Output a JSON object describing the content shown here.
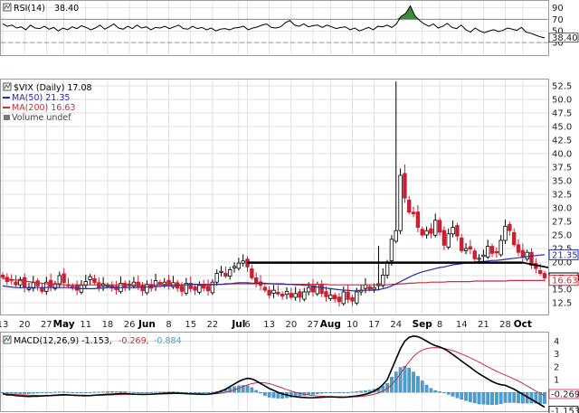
{
  "chart_data": [
    {
      "type": "line",
      "indicator_label": "RSI(14)",
      "indicator_value": "38.40",
      "yticks": [
        "90",
        "70",
        "50",
        "30"
      ],
      "ylim": [
        10,
        100
      ],
      "reference_lines": [
        70,
        30
      ],
      "current_marker": "38.40",
      "series": [
        {
          "values": [
            62,
            58,
            60,
            55,
            57,
            52,
            60,
            55,
            54,
            58,
            53,
            56,
            50,
            55,
            52,
            57,
            54,
            59,
            56,
            52,
            55,
            60,
            53,
            57,
            62,
            55,
            53,
            58,
            54,
            60,
            55,
            57,
            52,
            56,
            55,
            58,
            54,
            57,
            60,
            54,
            53,
            58,
            54,
            56,
            52,
            55,
            50,
            53,
            54,
            52,
            55,
            56,
            58,
            52,
            55,
            57,
            60,
            62,
            56,
            55,
            57,
            64,
            68,
            60,
            58,
            62,
            57,
            59,
            60,
            56,
            60,
            57,
            54,
            56,
            57,
            52,
            55,
            50,
            53,
            56,
            52,
            58,
            57,
            60,
            56,
            62,
            75,
            80,
            93,
            76,
            68,
            62,
            58,
            62,
            55,
            58,
            63,
            56,
            54,
            60,
            52,
            48,
            55,
            50,
            47,
            50,
            52,
            49,
            51,
            55,
            53,
            51,
            56,
            48,
            46,
            43,
            40,
            38
          ]
        }
      ]
    },
    {
      "type": "candlestick",
      "title": "$VIX (Daily) 17.08",
      "legend": [
        {
          "name": "MA(50) 21.35",
          "color": "#2b2b9e"
        },
        {
          "name": "MA(200) 16.63",
          "color": "#cc2b3b"
        },
        {
          "name": "Volume undef",
          "color": "#777777"
        }
      ],
      "yticks": [
        "52.5",
        "50.0",
        "47.5",
        "45.0",
        "42.5",
        "40.0",
        "37.5",
        "35.0",
        "32.5",
        "30.0",
        "27.5",
        "25.0",
        "22.5",
        "20.0",
        "17.5",
        "15.0",
        "12.5"
      ],
      "ylim": [
        10.5,
        53.5
      ],
      "markers": [
        {
          "label": "21.35",
          "color": "#2b2b9e"
        },
        {
          "label": "17.08",
          "color": "#000000"
        },
        {
          "label": "16.63",
          "color": "#cc2b3b"
        }
      ],
      "close": [
        17.2,
        16.4,
        16.7,
        15.8,
        16.8,
        15.3,
        15.2,
        16.2,
        15.6,
        14.6,
        16.3,
        15.5,
        16.0,
        17.5,
        16.2,
        15.6,
        15.5,
        14.8,
        15.7,
        16.4,
        17.3,
        16.2,
        15.2,
        16.0,
        15.7,
        15.2,
        14.9,
        16.1,
        15.3,
        15.9,
        16.3,
        15.5,
        14.7,
        15.9,
        15.2,
        16.6,
        15.9,
        16.3,
        15.8,
        16.2,
        15.2,
        14.6,
        16.1,
        15.1,
        14.8,
        15.7,
        15.2,
        14.7,
        16.3,
        17.9,
        18.3,
        17.4,
        18.6,
        19.2,
        19.8,
        20.2,
        19.1,
        17.1,
        16.0,
        15.7,
        14.8,
        13.9,
        14.8,
        14.1,
        13.7,
        14.6,
        13.5,
        14.2,
        13.5,
        14.5,
        15.3,
        14.5,
        15.9,
        14.2,
        13.6,
        13.9,
        13.2,
        12.7,
        14.5,
        13.1,
        12.8,
        14.5,
        14.8,
        15.8,
        15.0,
        15.3,
        16.0,
        17.6,
        19.9,
        24.2,
        25.8,
        36.0,
        31.8,
        29.2,
        28.9,
        26.4,
        25.0,
        25.8,
        25.3,
        27.7,
        25.5,
        23.1,
        25.2,
        26.4,
        24.8,
        22.1,
        22.5,
        22.4,
        20.6,
        20.7,
        21.3,
        22.9,
        21.6,
        21.7,
        24.0,
        26.6,
        25.8,
        23.2,
        21.8,
        20.9,
        21.8,
        19.4,
        18.8,
        17.9,
        17.08
      ],
      "ma50": [
        15.6,
        15.5,
        15.4,
        15.3,
        15.3,
        15.3,
        15.3,
        15.3,
        15.3,
        15.3,
        15.3,
        15.3,
        15.3,
        15.3,
        15.3,
        15.3,
        15.2,
        15.2,
        15.1,
        15.1,
        15.1,
        15.1,
        15.2,
        15.2,
        15.3,
        15.3,
        15.3,
        15.3,
        15.3,
        15.3,
        15.3,
        15.3,
        15.4,
        15.4,
        15.5,
        15.5,
        15.5,
        15.6,
        15.6,
        15.7,
        15.7,
        15.8,
        15.8,
        15.9,
        15.9,
        15.8,
        15.8,
        15.8,
        15.8,
        15.9,
        15.9,
        16.0,
        16.0,
        16.1,
        16.2,
        16.2,
        16.2,
        16.1,
        16.1,
        16.1,
        16.1,
        16.0,
        16.0,
        16.0,
        16.0,
        15.9,
        15.9,
        15.8,
        15.8,
        15.7,
        15.7,
        15.5,
        15.4,
        15.3,
        15.2,
        15.1,
        15.0,
        14.9,
        14.8,
        14.8,
        14.7,
        14.7,
        14.8,
        14.8,
        14.8,
        14.8,
        14.9,
        15.1,
        15.3,
        15.6,
        16.0,
        16.4,
        16.8,
        17.2,
        17.6,
        17.9,
        18.2,
        18.4,
        18.6,
        18.8,
        19.0,
        19.1,
        19.3,
        19.5,
        19.6,
        19.7,
        19.8,
        19.9,
        20.0,
        20.1,
        20.1,
        20.2,
        20.3,
        20.3,
        20.4,
        20.5,
        20.6,
        20.7,
        20.8,
        20.9,
        21.0,
        21.1,
        21.2,
        21.3,
        21.35
      ],
      "ma200": [
        17.0,
        16.9,
        16.8,
        16.7,
        16.6,
        16.5,
        16.4,
        16.3,
        16.2,
        16.1,
        16.0,
        15.9,
        15.9,
        15.8,
        15.8,
        15.8,
        15.8,
        15.8,
        15.8,
        15.8,
        15.8,
        15.8,
        15.8,
        15.8,
        15.8,
        15.8,
        15.8,
        15.8,
        15.8,
        15.8,
        15.8,
        15.8,
        15.8,
        15.8,
        15.8,
        15.8,
        15.8,
        15.8,
        15.8,
        15.8,
        15.8,
        15.8,
        15.8,
        15.8,
        15.9,
        15.9,
        15.9,
        15.9,
        15.9,
        15.9,
        15.9,
        15.9,
        16.0,
        16.0,
        16.0,
        16.0,
        16.0,
        16.0,
        16.0,
        16.0,
        16.0,
        16.0,
        16.0,
        15.9,
        15.9,
        15.9,
        15.9,
        15.9,
        15.9,
        15.9,
        15.9,
        15.9,
        15.9,
        15.9,
        15.9,
        15.8,
        15.8,
        15.8,
        15.8,
        15.8,
        15.8,
        15.8,
        15.8,
        15.8,
        15.8,
        15.8,
        15.8,
        15.8,
        15.8,
        15.9,
        15.9,
        16.0,
        16.0,
        16.1,
        16.1,
        16.2,
        16.2,
        16.2,
        16.3,
        16.3,
        16.3,
        16.3,
        16.4,
        16.4,
        16.4,
        16.4,
        16.4,
        16.4,
        16.5,
        16.5,
        16.5,
        16.5,
        16.5,
        16.5,
        16.5,
        16.5,
        16.6,
        16.6,
        16.6,
        16.6,
        16.6,
        16.6,
        16.6,
        16.6,
        16.63
      ],
      "resistance_line": {
        "y": 19.9,
        "start_index": 56,
        "end_index": 119
      },
      "extreme_highs": [
        {
          "index": 90,
          "value": 53.3
        },
        {
          "index": 92,
          "value": 38.0
        },
        {
          "index": 86,
          "value": 23.0
        }
      ]
    },
    {
      "type": "line",
      "indicator_label": "MACD(12,26,9) -1.153,",
      "signal_text": "-0.269,",
      "histogram_text": "-0.884",
      "yticks": [
        "4",
        "3",
        "2",
        "1",
        "0"
      ],
      "ylim": [
        -1.4,
        4.6
      ],
      "markers": [
        {
          "label": "-0.269",
          "color": "#cc2b3b"
        },
        {
          "label": "-1.153",
          "color": "#000000"
        }
      ],
      "series": [
        {
          "name": "MACD",
          "color": "#000000",
          "values": [
            -0.1,
            -0.2,
            -0.2,
            -0.25,
            -0.28,
            -0.3,
            -0.32,
            -0.3,
            -0.3,
            -0.28,
            -0.26,
            -0.25,
            -0.22,
            -0.2,
            -0.18,
            -0.2,
            -0.22,
            -0.24,
            -0.25,
            -0.26,
            -0.25,
            -0.22,
            -0.2,
            -0.18,
            -0.15,
            -0.14,
            -0.12,
            -0.1,
            -0.1,
            -0.12,
            -0.14,
            -0.15,
            -0.16,
            -0.15,
            -0.14,
            -0.12,
            -0.1,
            -0.08,
            -0.06,
            -0.05,
            -0.06,
            -0.08,
            -0.1,
            -0.12,
            -0.13,
            -0.14,
            -0.15,
            -0.14,
            -0.1,
            -0.02,
            0.1,
            0.25,
            0.45,
            0.65,
            0.85,
            1.0,
            1.1,
            1.05,
            0.9,
            0.7,
            0.5,
            0.3,
            0.15,
            0.0,
            -0.12,
            -0.2,
            -0.28,
            -0.34,
            -0.38,
            -0.4,
            -0.42,
            -0.42,
            -0.4,
            -0.38,
            -0.36,
            -0.35,
            -0.36,
            -0.38,
            -0.38,
            -0.36,
            -0.32,
            -0.28,
            -0.22,
            -0.15,
            -0.05,
            0.1,
            0.3,
            0.6,
            1.0,
            1.8,
            2.6,
            3.4,
            4.0,
            4.3,
            4.4,
            4.35,
            4.2,
            4.0,
            3.8,
            3.65,
            3.55,
            3.4,
            3.2,
            2.95,
            2.7,
            2.45,
            2.2,
            1.95,
            1.7,
            1.45,
            1.25,
            1.05,
            0.85,
            0.7,
            0.6,
            0.55,
            0.4,
            0.25,
            0.05,
            -0.15,
            -0.35,
            -0.55,
            -0.75,
            -0.95,
            -1.153
          ]
        },
        {
          "name": "Signal",
          "color": "#cc2b3b",
          "values": [
            -0.1,
            -0.12,
            -0.14,
            -0.16,
            -0.18,
            -0.2,
            -0.22,
            -0.23,
            -0.24,
            -0.25,
            -0.25,
            -0.25,
            -0.25,
            -0.24,
            -0.23,
            -0.22,
            -0.22,
            -0.22,
            -0.23,
            -0.23,
            -0.24,
            -0.24,
            -0.23,
            -0.22,
            -0.21,
            -0.2,
            -0.18,
            -0.17,
            -0.16,
            -0.15,
            -0.15,
            -0.15,
            -0.15,
            -0.15,
            -0.15,
            -0.14,
            -0.13,
            -0.12,
            -0.11,
            -0.1,
            -0.09,
            -0.09,
            -0.09,
            -0.1,
            -0.1,
            -0.11,
            -0.12,
            -0.13,
            -0.12,
            -0.1,
            -0.06,
            0.0,
            0.08,
            0.2,
            0.32,
            0.45,
            0.58,
            0.68,
            0.74,
            0.76,
            0.74,
            0.68,
            0.58,
            0.46,
            0.34,
            0.22,
            0.1,
            0.0,
            -0.08,
            -0.15,
            -0.2,
            -0.25,
            -0.28,
            -0.3,
            -0.32,
            -0.33,
            -0.34,
            -0.35,
            -0.36,
            -0.36,
            -0.35,
            -0.34,
            -0.32,
            -0.28,
            -0.22,
            -0.15,
            -0.05,
            0.1,
            0.3,
            0.6,
            1.0,
            1.45,
            1.95,
            2.4,
            2.8,
            3.1,
            3.3,
            3.42,
            3.48,
            3.5,
            3.48,
            3.43,
            3.36,
            3.26,
            3.14,
            3.0,
            2.85,
            2.7,
            2.53,
            2.36,
            2.18,
            2.0,
            1.82,
            1.65,
            1.5,
            1.35,
            1.2,
            1.05,
            0.88,
            0.7,
            0.5,
            0.3,
            0.1,
            -0.08,
            -0.269
          ]
        },
        {
          "name": "Histogram",
          "color": "#4a9fd0",
          "values": [
            0.0,
            -0.08,
            -0.06,
            -0.09,
            -0.1,
            -0.1,
            -0.1,
            -0.07,
            -0.06,
            -0.03,
            -0.01,
            0.0,
            0.03,
            0.04,
            0.05,
            0.02,
            0.0,
            -0.02,
            -0.02,
            -0.03,
            -0.01,
            0.02,
            0.03,
            0.04,
            0.06,
            0.06,
            0.06,
            0.07,
            0.06,
            0.03,
            0.01,
            0.0,
            -0.01,
            0.0,
            0.01,
            0.02,
            0.03,
            0.04,
            0.05,
            0.05,
            0.03,
            0.01,
            -0.01,
            -0.02,
            -0.03,
            -0.03,
            -0.03,
            -0.01,
            0.02,
            0.08,
            0.16,
            0.25,
            0.37,
            0.45,
            0.53,
            0.55,
            0.52,
            0.37,
            0.16,
            -0.06,
            -0.24,
            -0.38,
            -0.43,
            -0.46,
            -0.46,
            -0.42,
            -0.38,
            -0.34,
            -0.3,
            -0.25,
            -0.22,
            -0.17,
            -0.12,
            -0.08,
            -0.04,
            -0.02,
            -0.02,
            -0.03,
            -0.02,
            0.0,
            0.03,
            0.06,
            0.1,
            0.13,
            0.17,
            0.25,
            0.35,
            0.5,
            0.7,
            1.2,
            1.6,
            1.95,
            2.05,
            1.9,
            1.6,
            1.25,
            0.9,
            0.58,
            0.32,
            0.15,
            0.07,
            -0.03,
            -0.16,
            -0.31,
            -0.44,
            -0.55,
            -0.65,
            -0.75,
            -0.83,
            -0.91,
            -0.93,
            -0.95,
            -0.97,
            -0.95,
            -0.9,
            -0.8,
            -0.8,
            -0.8,
            -0.83,
            -0.85,
            -0.85,
            -0.85,
            -0.85,
            -0.87,
            -0.884
          ]
        }
      ]
    }
  ],
  "x_axis_labels": [
    {
      "label": "13",
      "index": 0,
      "bold": false
    },
    {
      "label": "20",
      "index": 5,
      "bold": false
    },
    {
      "label": "27",
      "index": 10,
      "bold": false
    },
    {
      "label": "May",
      "index": 14,
      "bold": true
    },
    {
      "label": "11",
      "index": 19,
      "bold": false
    },
    {
      "label": "18",
      "index": 24,
      "bold": false
    },
    {
      "label": "26",
      "index": 29,
      "bold": false
    },
    {
      "label": "Jun",
      "index": 33,
      "bold": true
    },
    {
      "label": "8",
      "index": 38,
      "bold": false
    },
    {
      "label": "15",
      "index": 43,
      "bold": false
    },
    {
      "label": "22",
      "index": 48,
      "bold": false
    },
    {
      "label": "Jul",
      "index": 54,
      "bold": true
    },
    {
      "label": "6",
      "index": 56,
      "bold": false
    },
    {
      "label": "13",
      "index": 61,
      "bold": false
    },
    {
      "label": "20",
      "index": 66,
      "bold": false
    },
    {
      "label": "27",
      "index": 71,
      "bold": false
    },
    {
      "label": "Aug",
      "index": 75,
      "bold": true
    },
    {
      "label": "10",
      "index": 80,
      "bold": false
    },
    {
      "label": "17",
      "index": 85,
      "bold": false
    },
    {
      "label": "24",
      "index": 90,
      "bold": false
    },
    {
      "label": "Sep",
      "index": 96,
      "bold": true
    },
    {
      "label": "8",
      "index": 100,
      "bold": false
    },
    {
      "label": "14",
      "index": 105,
      "bold": false
    },
    {
      "label": "21",
      "index": 110,
      "bold": false
    },
    {
      "label": "28",
      "index": 115,
      "bold": false
    },
    {
      "label": "Oct",
      "index": 119,
      "bold": true
    }
  ],
  "colors": {
    "up_candle": "#ffffff",
    "down_candle": "#cc1f2f",
    "up_candle_outline": "#000000",
    "ma50": "#2b2b9e",
    "ma200": "#cc2b3b",
    "rsi_line": "#000000",
    "rsi_overbought_fill": "#3f8a3f",
    "macd_line": "#000000",
    "signal_line": "#cc2b3b",
    "histogram": "#4a9fd0",
    "grid": "#d4d4d4"
  }
}
